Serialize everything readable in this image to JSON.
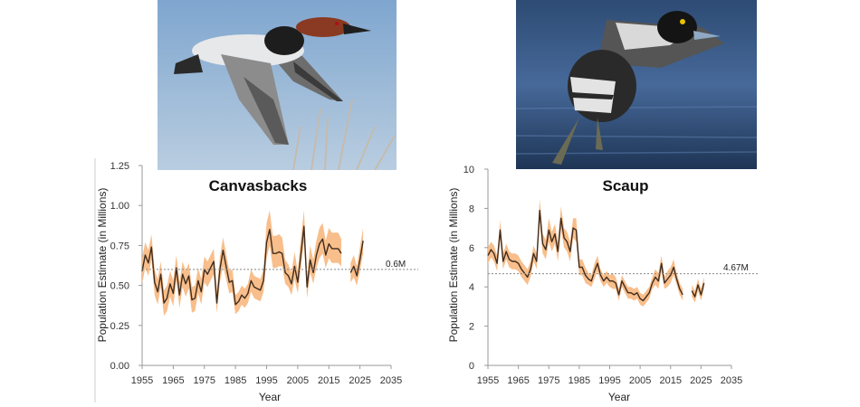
{
  "photos": [
    {
      "subject": "canvasback-drake-in-flight"
    },
    {
      "subject": "scaup-drake-taking-off"
    }
  ],
  "colors": {
    "band": "#f7b77e",
    "line": "#3f2c1e",
    "ref": "#888888",
    "axis": "#999999"
  },
  "chart_data": [
    {
      "type": "line",
      "title": "Canvasbacks",
      "xlabel": "Year",
      "ylabel": "Population Estimate (in Millions)",
      "xlim": [
        1955,
        2035
      ],
      "ylim": [
        0,
        1.25
      ],
      "xticks": [
        "1955",
        "1965",
        "1975",
        "1985",
        "1995",
        "2005",
        "2015",
        "2025",
        "2035"
      ],
      "yticks": [
        "0.00",
        "0.25",
        "0.50",
        "0.75",
        "1.00",
        "1.25"
      ],
      "reference_line": {
        "value": 0.6,
        "label": "0.6M",
        "style": "dotted"
      },
      "grid": false,
      "band": "confidence interval",
      "series": [
        {
          "x": [
            1955,
            1956,
            1957,
            1958,
            1959,
            1960,
            1961,
            1962,
            1963,
            1964,
            1965,
            1966,
            1967,
            1968,
            1969,
            1970,
            1971,
            1972,
            1973,
            1974,
            1975,
            1976,
            1977,
            1978,
            1979,
            1980,
            1981,
            1982,
            1983,
            1984,
            1985,
            1986,
            1987,
            1988,
            1989,
            1990,
            1991,
            1992,
            1993,
            1994,
            1995,
            1996,
            1997,
            1998,
            1999,
            2000,
            2001,
            2002,
            2003,
            2004,
            2005,
            2006,
            2007,
            2008,
            2009,
            2010,
            2011,
            2012,
            2013,
            2014,
            2015,
            2016,
            2017,
            2018,
            2019
          ],
          "y": [
            0.59,
            0.69,
            0.64,
            0.74,
            0.52,
            0.46,
            0.57,
            0.39,
            0.42,
            0.51,
            0.45,
            0.61,
            0.44,
            0.57,
            0.51,
            0.56,
            0.41,
            0.42,
            0.53,
            0.46,
            0.6,
            0.57,
            0.61,
            0.65,
            0.39,
            0.6,
            0.72,
            0.62,
            0.52,
            0.53,
            0.38,
            0.4,
            0.44,
            0.42,
            0.45,
            0.53,
            0.49,
            0.48,
            0.47,
            0.53,
            0.77,
            0.85,
            0.7,
            0.7,
            0.71,
            0.7,
            0.58,
            0.56,
            0.51,
            0.62,
            0.52,
            0.69,
            0.87,
            0.49,
            0.66,
            0.58,
            0.69,
            0.76,
            0.79,
            0.69,
            0.76,
            0.73,
            0.73,
            0.73,
            0.7
          ],
          "low": [
            0.51,
            0.61,
            0.56,
            0.66,
            0.44,
            0.38,
            0.49,
            0.31,
            0.34,
            0.43,
            0.37,
            0.53,
            0.36,
            0.49,
            0.43,
            0.48,
            0.33,
            0.34,
            0.45,
            0.38,
            0.52,
            0.49,
            0.53,
            0.57,
            0.33,
            0.52,
            0.62,
            0.54,
            0.45,
            0.46,
            0.32,
            0.34,
            0.38,
            0.36,
            0.39,
            0.46,
            0.42,
            0.41,
            0.4,
            0.46,
            0.67,
            0.75,
            0.61,
            0.61,
            0.62,
            0.62,
            0.51,
            0.49,
            0.44,
            0.54,
            0.45,
            0.61,
            0.77,
            0.42,
            0.58,
            0.51,
            0.61,
            0.67,
            0.7,
            0.61,
            0.67,
            0.64,
            0.64,
            0.64,
            0.62
          ],
          "high": [
            0.67,
            0.77,
            0.72,
            0.82,
            0.6,
            0.54,
            0.65,
            0.47,
            0.5,
            0.59,
            0.53,
            0.69,
            0.52,
            0.65,
            0.59,
            0.64,
            0.49,
            0.5,
            0.61,
            0.54,
            0.68,
            0.65,
            0.69,
            0.73,
            0.47,
            0.68,
            0.8,
            0.7,
            0.59,
            0.6,
            0.44,
            0.46,
            0.5,
            0.48,
            0.51,
            0.6,
            0.56,
            0.55,
            0.54,
            0.6,
            0.89,
            0.97,
            0.81,
            0.81,
            0.82,
            0.8,
            0.66,
            0.63,
            0.58,
            0.71,
            0.59,
            0.79,
            0.97,
            0.56,
            0.75,
            0.66,
            0.78,
            0.86,
            0.89,
            0.78,
            0.86,
            0.83,
            0.83,
            0.83,
            0.79
          ]
        },
        {
          "x": [
            2022,
            2023,
            2024,
            2025,
            2026
          ],
          "y": [
            0.58,
            0.62,
            0.56,
            0.66,
            0.78
          ],
          "low": [
            0.52,
            0.55,
            0.5,
            0.59,
            0.7
          ],
          "high": [
            0.64,
            0.69,
            0.62,
            0.74,
            0.86
          ]
        }
      ]
    },
    {
      "type": "line",
      "title": "Scaup",
      "xlabel": "Year",
      "ylabel": "Population Estimate (in Millions)",
      "xlim": [
        1955,
        2035
      ],
      "ylim": [
        0,
        10
      ],
      "xticks": [
        "1955",
        "1965",
        "1975",
        "1985",
        "1995",
        "2005",
        "2015",
        "2025",
        "2035"
      ],
      "yticks": [
        "0",
        "2",
        "4",
        "6",
        "8",
        "10"
      ],
      "reference_line": {
        "value": 4.67,
        "label": "4.67M",
        "style": "dotted"
      },
      "grid": false,
      "band": "confidence interval",
      "series": [
        {
          "x": [
            1955,
            1956,
            1957,
            1958,
            1959,
            1960,
            1961,
            1962,
            1963,
            1964,
            1965,
            1966,
            1967,
            1968,
            1969,
            1970,
            1971,
            1972,
            1973,
            1974,
            1975,
            1976,
            1977,
            1978,
            1979,
            1980,
            1981,
            1982,
            1983,
            1984,
            1985,
            1986,
            1987,
            1988,
            1989,
            1990,
            1991,
            1992,
            1993,
            1994,
            1995,
            1996,
            1997,
            1998,
            1999,
            2000,
            2001,
            2002,
            2003,
            2004,
            2005,
            2006,
            2007,
            2008,
            2009,
            2010,
            2011,
            2012,
            2013,
            2014,
            2015,
            2016,
            2017,
            2018,
            2019
          ],
          "y": [
            5.6,
            5.9,
            5.7,
            5.2,
            6.9,
            5.3,
            5.8,
            5.4,
            5.3,
            5.3,
            5.2,
            4.9,
            4.7,
            4.5,
            4.9,
            5.7,
            5.3,
            7.9,
            6.2,
            5.9,
            6.9,
            6.3,
            6.7,
            5.8,
            7.5,
            6.5,
            6.3,
            5.8,
            7.0,
            6.9,
            5.0,
            5.0,
            4.6,
            4.4,
            4.3,
            4.8,
            5.2,
            4.6,
            4.3,
            4.5,
            4.3,
            4.3,
            4.2,
            3.6,
            4.3,
            4.0,
            3.7,
            3.7,
            3.6,
            3.7,
            3.4,
            3.3,
            3.5,
            3.7,
            4.2,
            4.5,
            4.3,
            5.2,
            4.2,
            4.4,
            4.6,
            5.0,
            4.4,
            3.9,
            3.6
          ],
          "low": [
            5.2,
            5.5,
            5.3,
            4.8,
            6.4,
            4.9,
            5.4,
            5.0,
            4.9,
            4.9,
            4.8,
            4.5,
            4.3,
            4.1,
            4.5,
            5.3,
            4.9,
            7.3,
            5.7,
            5.4,
            6.3,
            5.8,
            6.2,
            5.3,
            6.9,
            6.0,
            5.8,
            5.3,
            6.5,
            6.3,
            4.6,
            4.6,
            4.2,
            4.1,
            4.0,
            4.4,
            4.8,
            4.3,
            4.0,
            4.2,
            4.0,
            3.9,
            3.9,
            3.3,
            4.0,
            3.7,
            3.4,
            3.4,
            3.3,
            3.4,
            3.1,
            3.0,
            3.2,
            3.4,
            3.9,
            4.1,
            3.9,
            4.8,
            3.9,
            4.0,
            4.2,
            4.6,
            4.1,
            3.6,
            3.3
          ],
          "high": [
            6.0,
            6.3,
            6.1,
            5.6,
            7.4,
            5.7,
            6.2,
            5.8,
            5.7,
            5.7,
            5.6,
            5.3,
            5.1,
            4.9,
            5.3,
            6.1,
            5.7,
            8.5,
            6.7,
            6.4,
            7.5,
            6.8,
            7.2,
            6.3,
            8.1,
            7.0,
            6.8,
            6.3,
            7.5,
            7.5,
            5.4,
            5.4,
            5.0,
            4.7,
            4.6,
            5.2,
            5.6,
            4.9,
            4.6,
            4.8,
            4.6,
            4.7,
            4.5,
            3.9,
            4.6,
            4.3,
            4.0,
            4.0,
            3.9,
            4.0,
            3.7,
            3.6,
            3.8,
            4.0,
            4.5,
            4.9,
            4.7,
            5.6,
            4.5,
            4.8,
            5.0,
            5.4,
            4.7,
            4.2,
            3.9
          ]
        },
        {
          "x": [
            2022,
            2023,
            2024,
            2025,
            2026
          ],
          "y": [
            3.8,
            3.5,
            4.1,
            3.6,
            4.2
          ],
          "low": [
            3.5,
            3.2,
            3.8,
            3.3,
            3.9
          ],
          "high": [
            4.1,
            3.8,
            4.4,
            3.9,
            4.5
          ]
        }
      ]
    }
  ]
}
